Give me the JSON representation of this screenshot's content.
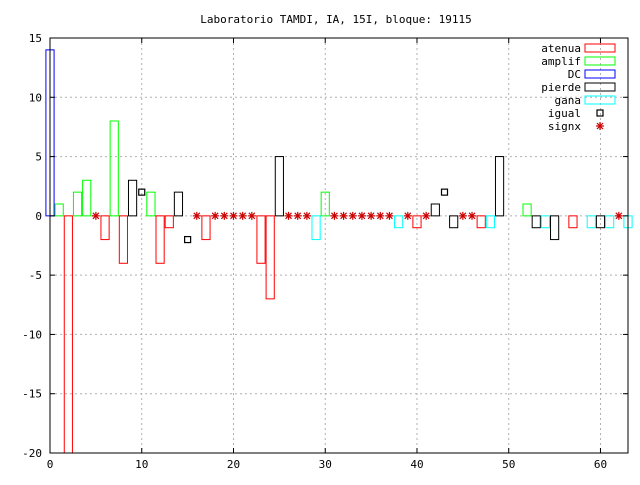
{
  "chart_data": {
    "type": "bar",
    "title": "Laboratorio TAMDI, IA, 15I,  bloque: 19115",
    "xlabel": "",
    "ylabel": "",
    "xlim": [
      0,
      63
    ],
    "ylim": [
      -20,
      15
    ],
    "grid": true,
    "legend_position": "top-right",
    "x_ticks": [
      0,
      10,
      20,
      30,
      40,
      50,
      60
    ],
    "y_ticks": [
      -20,
      -15,
      -10,
      -5,
      0,
      5,
      10,
      15
    ],
    "colors": {
      "atenua": "#ff0000",
      "amplif": "#00ff00",
      "DC": "#0000ff",
      "pierde": "#000000",
      "gana": "#00ffff",
      "igual": "#000000",
      "signx": "#cc0000"
    },
    "series": [
      {
        "name": "atenua",
        "kind": "bar",
        "x": [
          2,
          6,
          8,
          12,
          13,
          17,
          23,
          24,
          40,
          47,
          57
        ],
        "values": [
          -20,
          -2,
          -4,
          -4,
          -1,
          -2,
          -4,
          -7,
          -1,
          -1,
          -1
        ]
      },
      {
        "name": "amplif",
        "kind": "bar",
        "x": [
          1,
          3,
          4,
          7,
          11,
          30,
          52
        ],
        "values": [
          1,
          2,
          3,
          8,
          2,
          2,
          1
        ]
      },
      {
        "name": "DC",
        "kind": "bar",
        "x": [
          0
        ],
        "values": [
          14
        ]
      },
      {
        "name": "pierde",
        "kind": "bar",
        "x": [
          9,
          14,
          25,
          42,
          44,
          49,
          53,
          55,
          60
        ],
        "values": [
          3,
          2,
          5,
          1,
          -1,
          5,
          -1,
          -2,
          -1
        ]
      },
      {
        "name": "gana",
        "kind": "bar",
        "x": [
          29,
          38,
          48,
          54,
          59,
          61,
          63
        ],
        "values": [
          -2,
          -1,
          -1,
          -1,
          -1,
          -1,
          -1
        ]
      },
      {
        "name": "igual",
        "kind": "point",
        "x": [
          10,
          15,
          43
        ],
        "values": [
          2,
          -2,
          2
        ]
      },
      {
        "name": "signx",
        "kind": "point",
        "x": [
          5,
          16,
          18,
          19,
          20,
          21,
          22,
          26,
          27,
          28,
          31,
          32,
          33,
          34,
          35,
          36,
          37,
          39,
          41,
          45,
          46,
          62
        ],
        "values": [
          0,
          0,
          0,
          0,
          0,
          0,
          0,
          0,
          0,
          0,
          0,
          0,
          0,
          0,
          0,
          0,
          0,
          0,
          0,
          0,
          0,
          0
        ]
      }
    ]
  }
}
